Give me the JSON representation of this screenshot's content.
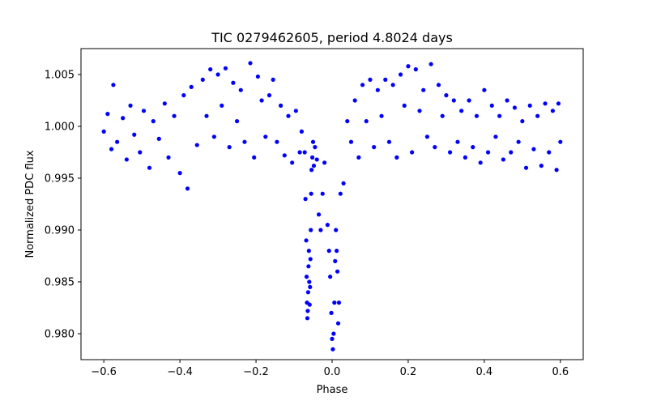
{
  "chart_data": {
    "type": "scatter",
    "title": "TIC 0279462605, period 4.8024 days",
    "xlabel": "Phase",
    "ylabel": "Normalized PDC flux",
    "xlim": [
      -0.66,
      0.66
    ],
    "ylim": [
      0.9775,
      1.0075
    ],
    "xticks": [
      -0.6,
      -0.4,
      -0.2,
      0.0,
      0.2,
      0.4,
      0.6
    ],
    "xtick_labels": [
      "−0.6",
      "−0.4",
      "−0.2",
      "0.0",
      "0.2",
      "0.4",
      "0.6"
    ],
    "yticks": [
      0.98,
      0.985,
      0.99,
      0.995,
      1.0,
      1.005
    ],
    "ytick_labels": [
      "0.980",
      "0.985",
      "0.990",
      "0.995",
      "1.000",
      "1.005"
    ],
    "grid": false,
    "marker_color": "#0000ff",
    "series": [
      {
        "name": "",
        "color": "#0000ff",
        "points": [
          [
            -0.6,
            0.9995
          ],
          [
            -0.59,
            1.0012
          ],
          [
            -0.58,
            0.9978
          ],
          [
            -0.575,
            1.004
          ],
          [
            -0.565,
            0.9985
          ],
          [
            -0.55,
            1.0008
          ],
          [
            -0.54,
            0.9968
          ],
          [
            -0.53,
            1.002
          ],
          [
            -0.52,
            0.9992
          ],
          [
            -0.505,
            0.9975
          ],
          [
            -0.495,
            1.0015
          ],
          [
            -0.48,
            0.996
          ],
          [
            -0.47,
            1.0005
          ],
          [
            -0.455,
            0.9988
          ],
          [
            -0.44,
            1.0022
          ],
          [
            -0.43,
            0.997
          ],
          [
            -0.415,
            1.001
          ],
          [
            -0.4,
            0.9955
          ],
          [
            -0.39,
            1.003
          ],
          [
            -0.38,
            0.994
          ],
          [
            -0.37,
            1.0038
          ],
          [
            -0.355,
            0.9982
          ],
          [
            -0.34,
            1.0045
          ],
          [
            -0.33,
            1.001
          ],
          [
            -0.32,
            1.0055
          ],
          [
            -0.31,
            0.999
          ],
          [
            -0.3,
            1.005
          ],
          [
            -0.29,
            1.002
          ],
          [
            -0.28,
            1.0056
          ],
          [
            -0.27,
            0.998
          ],
          [
            -0.26,
            1.0042
          ],
          [
            -0.25,
            1.0005
          ],
          [
            -0.24,
            1.0035
          ],
          [
            -0.23,
            0.9985
          ],
          [
            -0.215,
            1.0061
          ],
          [
            -0.205,
            0.997
          ],
          [
            -0.195,
            1.0048
          ],
          [
            -0.185,
            1.0025
          ],
          [
            -0.175,
            0.999
          ],
          [
            -0.165,
            1.003
          ],
          [
            -0.155,
            1.0045
          ],
          [
            -0.145,
            0.9985
          ],
          [
            -0.135,
            1.002
          ],
          [
            -0.125,
            0.9972
          ],
          [
            -0.115,
            1.001
          ],
          [
            -0.105,
            0.9965
          ],
          [
            -0.095,
            1.0015
          ],
          [
            -0.085,
            0.9975
          ],
          [
            -0.08,
            0.9995
          ],
          [
            -0.072,
            0.9975
          ],
          [
            -0.07,
            0.993
          ],
          [
            -0.068,
            0.989
          ],
          [
            -0.067,
            0.9855
          ],
          [
            -0.066,
            0.983
          ],
          [
            -0.065,
            0.9815
          ],
          [
            -0.064,
            0.9822
          ],
          [
            -0.063,
            0.984
          ],
          [
            -0.062,
            0.9865
          ],
          [
            -0.061,
            0.988
          ],
          [
            -0.06,
            0.985
          ],
          [
            -0.059,
            0.9828
          ],
          [
            -0.058,
            0.9845
          ],
          [
            -0.057,
            0.9872
          ],
          [
            -0.056,
            0.99
          ],
          [
            -0.055,
            0.9935
          ],
          [
            -0.054,
            0.9958
          ],
          [
            -0.052,
            0.997
          ],
          [
            -0.05,
            0.9985
          ],
          [
            -0.048,
            0.9962
          ],
          [
            -0.045,
            0.998
          ],
          [
            -0.04,
            0.9968
          ],
          [
            -0.035,
            0.9915
          ],
          [
            -0.03,
            0.99
          ],
          [
            -0.025,
            0.9935
          ],
          [
            -0.02,
            0.9965
          ],
          [
            -0.012,
            0.9905
          ],
          [
            -0.008,
            0.988
          ],
          [
            -0.005,
            0.9855
          ],
          [
            -0.002,
            0.982
          ],
          [
            0.0,
            0.9795
          ],
          [
            0.002,
            0.9785
          ],
          [
            0.004,
            0.98
          ],
          [
            0.006,
            0.983
          ],
          [
            0.008,
            0.987
          ],
          [
            0.01,
            0.99
          ],
          [
            0.012,
            0.988
          ],
          [
            0.014,
            0.986
          ],
          [
            0.016,
            0.981
          ],
          [
            0.018,
            0.983
          ],
          [
            0.022,
            0.9935
          ],
          [
            0.03,
            0.9945
          ],
          [
            0.04,
            1.0005
          ],
          [
            0.05,
            0.9985
          ],
          [
            0.06,
            1.0025
          ],
          [
            0.07,
            0.997
          ],
          [
            0.08,
            1.004
          ],
          [
            0.09,
            1.0005
          ],
          [
            0.1,
            1.0045
          ],
          [
            0.11,
            0.998
          ],
          [
            0.12,
            1.0035
          ],
          [
            0.13,
            1.001
          ],
          [
            0.14,
            1.0045
          ],
          [
            0.15,
            0.9985
          ],
          [
            0.16,
            1.004
          ],
          [
            0.17,
            0.997
          ],
          [
            0.18,
            1.005
          ],
          [
            0.19,
            1.002
          ],
          [
            0.2,
            1.0058
          ],
          [
            0.21,
            0.9975
          ],
          [
            0.22,
            1.0055
          ],
          [
            0.23,
            1.0015
          ],
          [
            0.24,
            1.0035
          ],
          [
            0.25,
            0.999
          ],
          [
            0.26,
            1.006
          ],
          [
            0.27,
            0.998
          ],
          [
            0.28,
            1.004
          ],
          [
            0.29,
            1.001
          ],
          [
            0.3,
            1.003
          ],
          [
            0.31,
            0.9975
          ],
          [
            0.32,
            1.0025
          ],
          [
            0.33,
            0.9985
          ],
          [
            0.34,
            1.0015
          ],
          [
            0.35,
            0.997
          ],
          [
            0.36,
            1.0025
          ],
          [
            0.37,
            0.998
          ],
          [
            0.38,
            1.001
          ],
          [
            0.39,
            0.9965
          ],
          [
            0.4,
            1.0035
          ],
          [
            0.41,
            0.9975
          ],
          [
            0.42,
            1.002
          ],
          [
            0.43,
            0.999
          ],
          [
            0.44,
            1.001
          ],
          [
            0.45,
            0.9968
          ],
          [
            0.46,
            1.0025
          ],
          [
            0.47,
            0.9975
          ],
          [
            0.48,
            1.0018
          ],
          [
            0.49,
            0.9985
          ],
          [
            0.5,
            1.0005
          ],
          [
            0.51,
            0.996
          ],
          [
            0.52,
            1.002
          ],
          [
            0.53,
            0.9978
          ],
          [
            0.54,
            1.001
          ],
          [
            0.55,
            0.9962
          ],
          [
            0.56,
            1.0022
          ],
          [
            0.57,
            0.9975
          ],
          [
            0.58,
            1.0015
          ],
          [
            0.59,
            0.9958
          ],
          [
            0.595,
            1.0022
          ],
          [
            0.6,
            0.9985
          ]
        ]
      }
    ]
  }
}
